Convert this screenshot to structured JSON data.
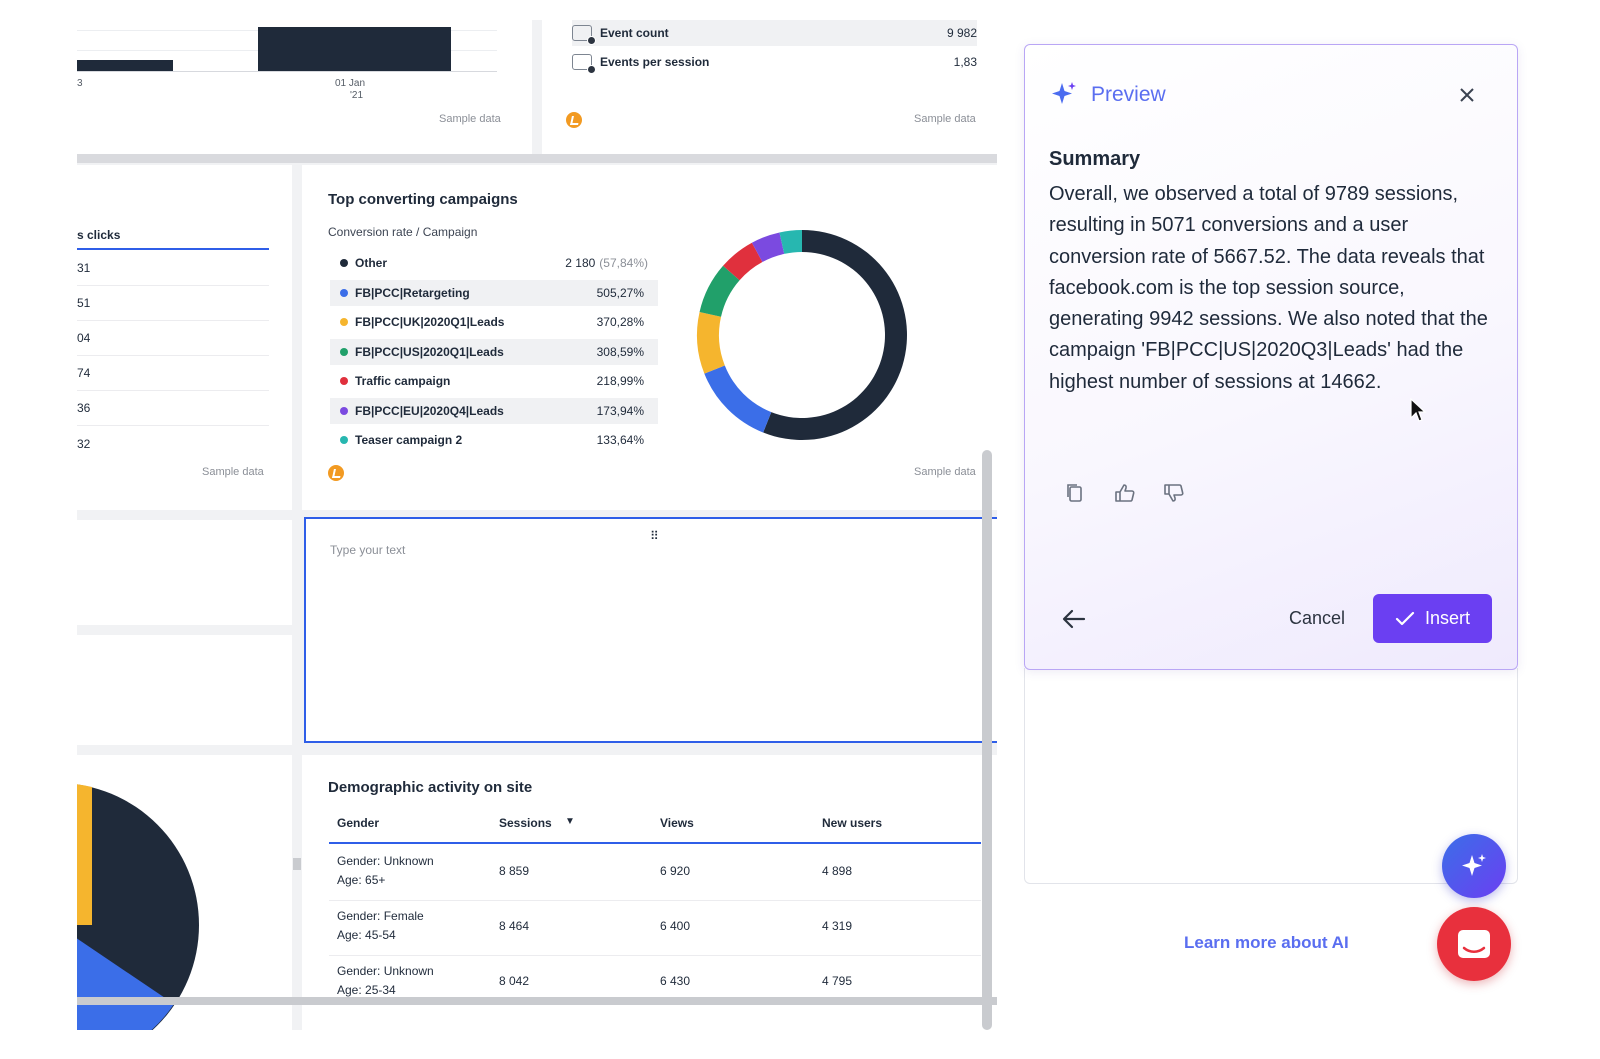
{
  "top_left_chart": {
    "tick_left": "3",
    "tick_date": "01 Jan",
    "tick_year": "'21",
    "sample": "Sample data"
  },
  "metrics": {
    "rows": [
      {
        "label": "Event count",
        "value": "9 982"
      },
      {
        "label": "Events per session",
        "value": "1,83"
      }
    ],
    "sample": "Sample data"
  },
  "left_clicks": {
    "header": "s clicks",
    "values": [
      "31",
      "51",
      "04",
      "74",
      "36",
      "32"
    ],
    "sample": "Sample data"
  },
  "campaigns": {
    "title": "Top converting campaigns",
    "subtitle": "Conversion rate / Campaign",
    "sample": "Sample data",
    "rows": [
      {
        "name": "Other",
        "value": "2 180",
        "pct": "(57,84%)",
        "color": "#1f2a3a"
      },
      {
        "name": "FB|PCC|Retargeting",
        "value": "505,27%",
        "pct": "",
        "color": "#3b6ee8"
      },
      {
        "name": "FB|PCC|UK|2020Q1|Leads",
        "value": "370,28%",
        "pct": "",
        "color": "#f5b52e"
      },
      {
        "name": "FB|PCC|US|2020Q1|Leads",
        "value": "308,59%",
        "pct": "",
        "color": "#21a06a"
      },
      {
        "name": "Traffic campaign",
        "value": "218,99%",
        "pct": "",
        "color": "#e0303d"
      },
      {
        "name": "FB|PCC|EU|2020Q4|Leads",
        "value": "173,94%",
        "pct": "",
        "color": "#7b4ae0"
      },
      {
        "name": "Teaser campaign 2",
        "value": "133,64%",
        "pct": "",
        "color": "#27b7b0"
      }
    ]
  },
  "chart_data": {
    "type": "pie",
    "categories": [
      "Other",
      "FB|PCC|Retargeting",
      "FB|PCC|UK|2020Q1|Leads",
      "FB|PCC|US|2020Q1|Leads",
      "Traffic campaign",
      "FB|PCC|EU|2020Q4|Leads",
      "Teaser campaign 2"
    ],
    "values": [
      57.84,
      13.4,
      9.82,
      8.19,
      5.81,
      4.62,
      3.55
    ],
    "colors": [
      "#1f2a3a",
      "#3b6ee8",
      "#f5b52e",
      "#21a06a",
      "#e0303d",
      "#7b4ae0",
      "#27b7b0"
    ],
    "donut": true
  },
  "text_widget": {
    "placeholder": "Type your text",
    "handle": "⠿"
  },
  "demographics": {
    "title": "Demographic activity on site",
    "columns": [
      "Gender",
      "Sessions",
      "Views",
      "New users"
    ],
    "rows": [
      {
        "gender": "Gender: Unknown",
        "age": "Age: 65+",
        "sessions": "8 859",
        "views": "6 920",
        "new_users": "4 898"
      },
      {
        "gender": "Gender: Female",
        "age": "Age: 45-54",
        "sessions": "8 464",
        "views": "6 400",
        "new_users": "4 319"
      },
      {
        "gender": "Gender: Unknown",
        "age": "Age: 25-34",
        "sessions": "8 042",
        "views": "6 430",
        "new_users": "4 795"
      }
    ]
  },
  "preview": {
    "title": "Preview",
    "summary_heading": "Summary",
    "summary_text": "Overall, we observed a total of 9789 sessions, resulting in 5071 conversions and a user conversion rate of 5667.52. The data reveals that facebook.com is the top session source, generating 9942 sessions. We also noted that the campaign 'FB|PCC|US|2020Q3|Leads' had the highest number of sessions at 14662.",
    "cancel": "Cancel",
    "insert": "Insert",
    "accent": "#6b3ff2"
  },
  "learn_more": "Learn more about AI"
}
